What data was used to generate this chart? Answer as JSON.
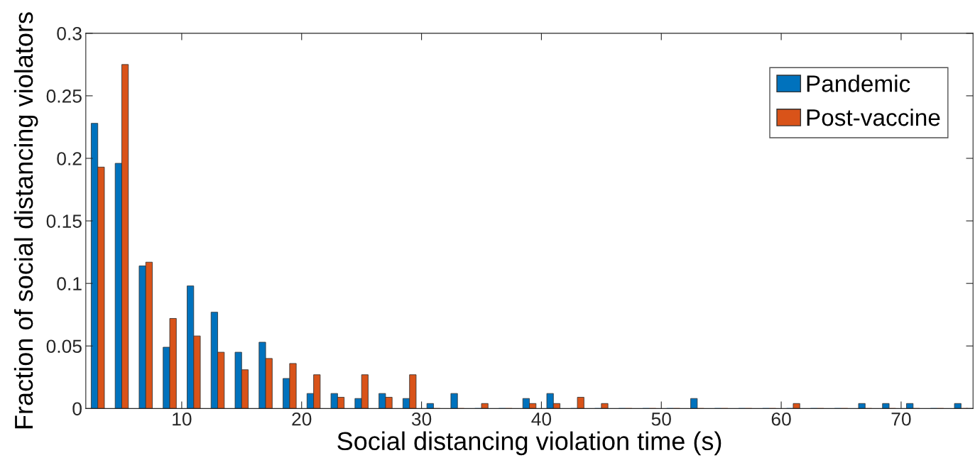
{
  "chart_data": {
    "type": "bar",
    "xlabel": "Social distancing violation time (s)",
    "ylabel": "Fraction of social distancing violators",
    "x": [
      3,
      5,
      7,
      9,
      11,
      13,
      15,
      17,
      19,
      21,
      23,
      25,
      27,
      29,
      31,
      33,
      35,
      37,
      39,
      41,
      43,
      45,
      47,
      49,
      51,
      53,
      55,
      57,
      59,
      61,
      63,
      65,
      67,
      69,
      71,
      73,
      75
    ],
    "series": [
      {
        "name": "Pandemic",
        "color": "#0072bd",
        "values": [
          0.228,
          0.196,
          0.114,
          0.049,
          0.098,
          0.077,
          0.045,
          0.053,
          0.024,
          0.012,
          0.012,
          0.008,
          0.012,
          0.008,
          0.004,
          0.012,
          0,
          0,
          0.008,
          0.012,
          0,
          0,
          0,
          0,
          0,
          0.008,
          0,
          0,
          0,
          0,
          0,
          0,
          0.004,
          0.004,
          0.004,
          0,
          0.004
        ]
      },
      {
        "name": "Post-vaccine",
        "color": "#d95319",
        "values": [
          0.193,
          0.275,
          0.117,
          0.072,
          0.058,
          0.045,
          0.031,
          0.04,
          0.036,
          0.027,
          0.009,
          0.027,
          0.009,
          0.027,
          0,
          0,
          0.004,
          0,
          0.004,
          0.004,
          0.009,
          0.004,
          0,
          0,
          0,
          0,
          0,
          0,
          0,
          0.004,
          0,
          0,
          0,
          0,
          0,
          0,
          0
        ]
      }
    ],
    "xlim": [
      2,
      76
    ],
    "xticks": [
      10,
      20,
      30,
      40,
      50,
      60,
      70
    ],
    "ylim": [
      0,
      0.3
    ],
    "yticks": [
      0,
      0.05,
      0.1,
      0.15,
      0.2,
      0.25,
      0.3
    ],
    "grid": false,
    "legend": "top right"
  }
}
